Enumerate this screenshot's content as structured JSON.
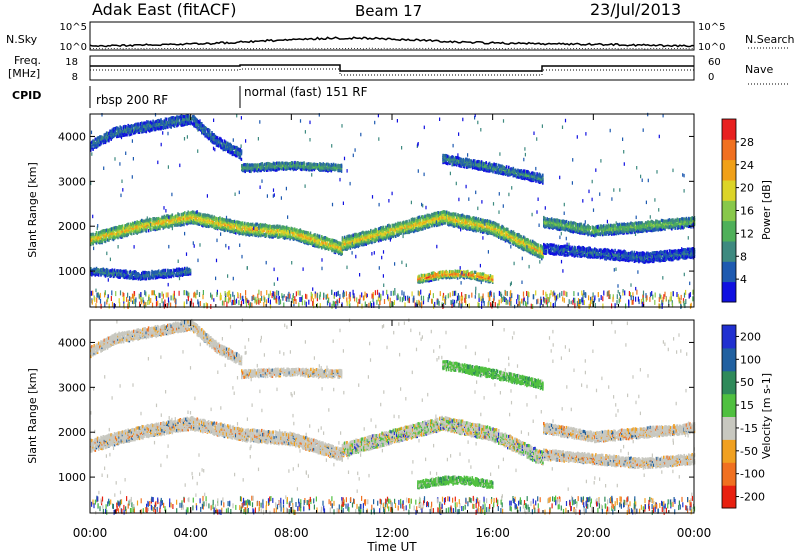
{
  "header": {
    "station": "Adak East (fitACF)",
    "beam": "Beam 17",
    "date": "23/Jul/2013"
  },
  "labels": {
    "nsky": "N.Sky",
    "nsearch": "N.Search",
    "freq": "Freq.",
    "mhz": "[MHz]",
    "nave": "Nave",
    "cpid": "CPID",
    "noise_ticks_left": [
      "10^5",
      "10^0"
    ],
    "noise_ticks_right": [
      "10^5",
      "10^0"
    ],
    "freq_ticks": [
      "18",
      "8"
    ],
    "nave_ticks": [
      "60",
      "0"
    ],
    "cpid_segments": [
      "rbsp 200 RF",
      "normal (fast) 151 RF"
    ],
    "xlabel": "Time UT"
  },
  "chart_data": [
    {
      "type": "heatmap",
      "name": "power-panel",
      "ylabel": "Slant Range [km]",
      "xlabel": "Time UT",
      "x_ticks": [
        "00:00",
        "04:00",
        "08:00",
        "12:00",
        "16:00",
        "20:00",
        "00:00"
      ],
      "xlim_hours": [
        0,
        24
      ],
      "y_ticks": [
        1000,
        2000,
        3000,
        4000
      ],
      "ylim": [
        200,
        4500
      ],
      "colorbar": {
        "label": "Power [dB]",
        "ticks": [
          "4",
          "8",
          "12",
          "16",
          "20",
          "24",
          "28"
        ],
        "colors": [
          "#1010e0",
          "#1e5ab0",
          "#3e8a80",
          "#4fb05a",
          "#88c84a",
          "#dcd428",
          "#f0a018",
          "#f07020",
          "#e82020"
        ]
      },
      "bands": [
        {
          "t": [
            0,
            2,
            4,
            6,
            8,
            10
          ],
          "r": [
            1700,
            2000,
            2200,
            1950,
            1850,
            1500
          ],
          "w": 260,
          "level": 0.72
        },
        {
          "t": [
            10,
            12,
            14,
            16,
            18
          ],
          "r": [
            1600,
            1900,
            2200,
            1950,
            1400
          ],
          "w": 280,
          "level": 0.7
        },
        {
          "t": [
            18,
            20,
            22,
            24
          ],
          "r": [
            2100,
            1900,
            2000,
            2100
          ],
          "w": 220,
          "level": 0.45
        },
        {
          "t": [
            13,
            14,
            15,
            16
          ],
          "r": [
            820,
            930,
            930,
            820
          ],
          "w": 160,
          "level": 0.88
        },
        {
          "t": [
            0,
            1,
            3,
            4,
            5,
            6
          ],
          "r": [
            3800,
            4100,
            4300,
            4400,
            3900,
            3600
          ],
          "w": 220,
          "level": 0.25
        },
        {
          "t": [
            6,
            8,
            10
          ],
          "r": [
            3300,
            3350,
            3300
          ],
          "w": 160,
          "level": 0.38
        },
        {
          "t": [
            14,
            16,
            18
          ],
          "r": [
            3500,
            3300,
            3050
          ],
          "w": 180,
          "level": 0.3
        },
        {
          "t": [
            18,
            20,
            22,
            24
          ],
          "r": [
            1500,
            1400,
            1300,
            1400
          ],
          "w": 200,
          "level": 0.2
        },
        {
          "t": [
            0,
            2,
            4
          ],
          "r": [
            1000,
            900,
            1000
          ],
          "w": 160,
          "level": 0.25
        }
      ]
    },
    {
      "type": "heatmap",
      "name": "velocity-panel",
      "ylabel": "Slant Range [km]",
      "xlabel": "Time UT",
      "x_ticks": [
        "00:00",
        "04:00",
        "08:00",
        "12:00",
        "16:00",
        "20:00",
        "00:00"
      ],
      "xlim_hours": [
        0,
        24
      ],
      "y_ticks": [
        1000,
        2000,
        3000,
        4000
      ],
      "ylim": [
        200,
        4500
      ],
      "colorbar": {
        "label": "Velocity [m s-1]",
        "ticks": [
          "200",
          "100",
          "50",
          "15",
          "-15",
          "-50",
          "-100",
          "-200"
        ],
        "colors": [
          "#2030d0",
          "#2060a0",
          "#2f8a5a",
          "#50c040",
          "#c8c8c0",
          "#f0a020",
          "#f07020",
          "#e82010"
        ]
      },
      "bands": [
        {
          "t": [
            0,
            2,
            4,
            6,
            8,
            10
          ],
          "r": [
            1700,
            2000,
            2200,
            1950,
            1850,
            1500
          ],
          "w": 260,
          "tone": "grey"
        },
        {
          "t": [
            10,
            12,
            14,
            16,
            18
          ],
          "r": [
            1600,
            1900,
            2200,
            1950,
            1400
          ],
          "w": 280,
          "tone": "greygreen"
        },
        {
          "t": [
            18,
            20,
            22,
            24
          ],
          "r": [
            2100,
            1900,
            2000,
            2100
          ],
          "w": 220,
          "tone": "grey"
        },
        {
          "t": [
            13,
            14,
            15,
            16
          ],
          "r": [
            830,
            930,
            930,
            830
          ],
          "w": 160,
          "tone": "green"
        },
        {
          "t": [
            0,
            1,
            3,
            4,
            5,
            6
          ],
          "r": [
            3800,
            4100,
            4300,
            4400,
            3900,
            3600
          ],
          "w": 220,
          "tone": "grey"
        },
        {
          "t": [
            6,
            8,
            10
          ],
          "r": [
            3300,
            3350,
            3300
          ],
          "w": 160,
          "tone": "grey"
        },
        {
          "t": [
            14,
            16,
            18
          ],
          "r": [
            3500,
            3300,
            3050
          ],
          "w": 180,
          "tone": "green"
        },
        {
          "t": [
            18,
            20,
            22,
            24
          ],
          "r": [
            1500,
            1400,
            1300,
            1400
          ],
          "w": 200,
          "tone": "grey"
        }
      ]
    }
  ]
}
